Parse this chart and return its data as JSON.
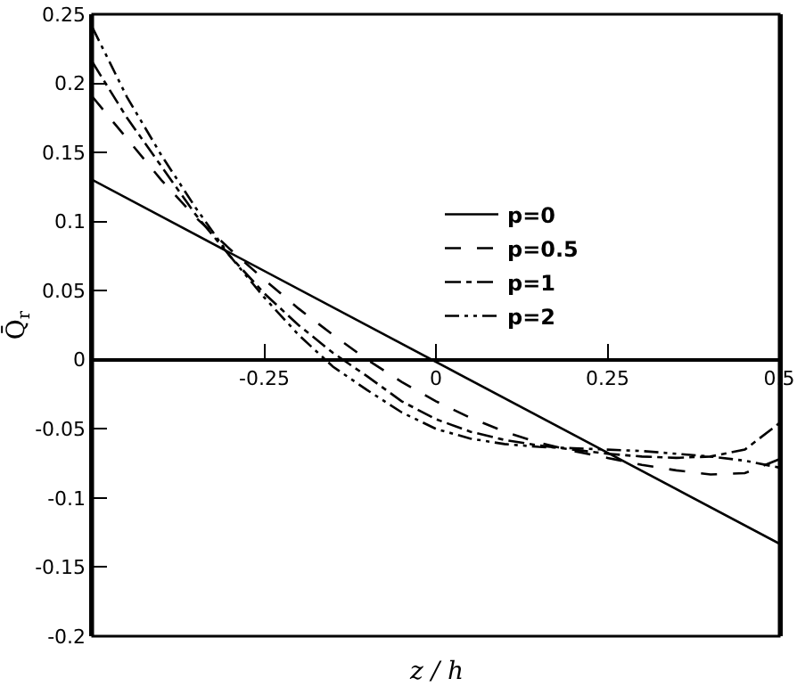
{
  "chart_data": {
    "type": "line",
    "xlabel": "z / h",
    "ylabel": "Q̄$_{r}$",
    "x": [
      -0.5,
      -0.45,
      -0.4,
      -0.35,
      -0.3,
      -0.25,
      -0.2,
      -0.15,
      -0.1,
      -0.05,
      0,
      0.05,
      0.1,
      0.15,
      0.2,
      0.25,
      0.3,
      0.35,
      0.4,
      0.45,
      0.5
    ],
    "series": [
      {
        "name": "p=0",
        "color": "#000000",
        "line_style": "solid",
        "x": [
          -0.5,
          0.5
        ],
        "values": [
          0.13,
          -0.133
        ]
      },
      {
        "name": "p=0.5",
        "color": "#000000",
        "line_style": "dashed",
        "values": [
          0.19,
          0.16,
          0.13,
          0.103,
          0.08,
          0.058,
          0.037,
          0.018,
          0.0,
          -0.016,
          -0.03,
          -0.042,
          -0.052,
          -0.06,
          -0.066,
          -0.071,
          -0.076,
          -0.08,
          -0.083,
          -0.082,
          -0.072
        ]
      },
      {
        "name": "p=1",
        "color": "#000000",
        "line_style": "dashdot",
        "values": [
          0.215,
          0.175,
          0.14,
          0.105,
          0.075,
          0.048,
          0.025,
          0.005,
          -0.012,
          -0.03,
          -0.043,
          -0.052,
          -0.058,
          -0.062,
          -0.065,
          -0.068,
          -0.07,
          -0.071,
          -0.07,
          -0.065,
          -0.046
        ]
      },
      {
        "name": "p=2",
        "color": "#000000",
        "line_style": "longdashdot",
        "values": [
          0.24,
          0.19,
          0.148,
          0.11,
          0.075,
          0.045,
          0.018,
          -0.005,
          -0.022,
          -0.038,
          -0.05,
          -0.057,
          -0.061,
          -0.063,
          -0.064,
          -0.065,
          -0.066,
          -0.068,
          -0.07,
          -0.073,
          -0.078
        ]
      }
    ],
    "xlim": [
      -0.5,
      0.5
    ],
    "xticks": [
      {
        "value": -0.5,
        "label": null
      },
      -0.25,
      0,
      0.25,
      0.5
    ],
    "ylim": [
      -0.2,
      0.25
    ],
    "yticks": [
      -0.2,
      -0.15,
      -0.1,
      -0.05,
      0,
      0.05,
      0.1,
      0.15,
      0.2,
      0.25
    ],
    "grid": false,
    "legend": "top right",
    "marker": "none"
  }
}
